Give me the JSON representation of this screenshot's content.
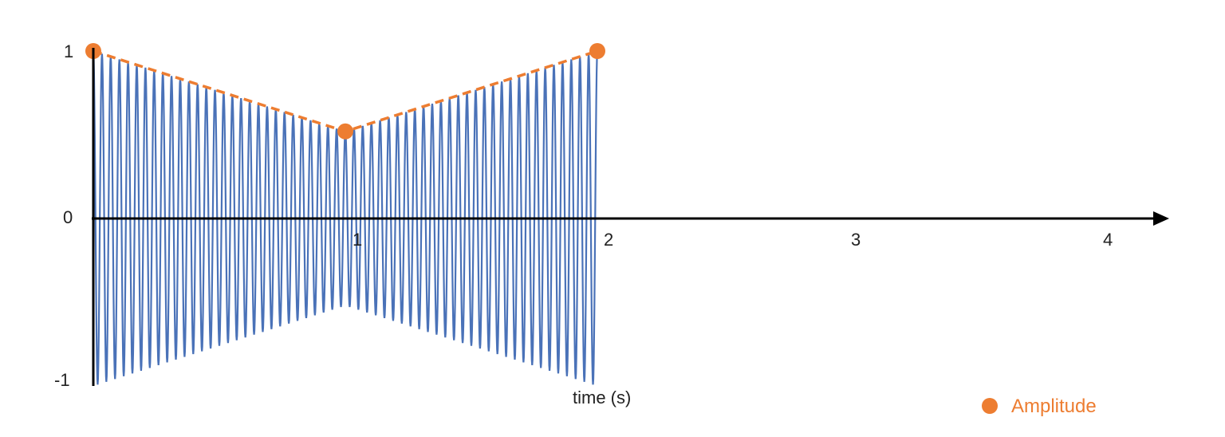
{
  "chart_data": {
    "type": "line",
    "title": "",
    "xlabel": "time (s)",
    "ylabel": "",
    "xlim": [
      0,
      4.2
    ],
    "ylim": [
      -1,
      1
    ],
    "x_ticks": [
      "1",
      "2",
      "3",
      "4"
    ],
    "y_ticks": [
      "1",
      "0",
      "-1"
    ],
    "series": [
      {
        "name": "",
        "kind": "oscillation",
        "cycles": 58,
        "x_start": 0,
        "x_end": 2,
        "envelope_x": [
          0,
          1,
          2
        ],
        "envelope_y": [
          1,
          0.52,
          1
        ],
        "color": "#4a72b8"
      },
      {
        "name": "Amplitude",
        "kind": "dashed-markers",
        "x": [
          0,
          1,
          2
        ],
        "y": [
          1,
          0.52,
          1
        ],
        "color": "#ed7d31"
      }
    ],
    "legend": {
      "placement": "bottom-right",
      "entries": [
        "Amplitude"
      ]
    },
    "grid": false
  }
}
